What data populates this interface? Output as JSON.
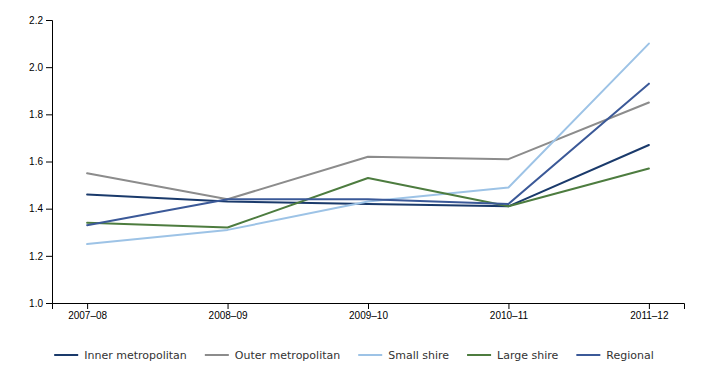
{
  "chart_data": {
    "type": "line",
    "categories": [
      "2007–08",
      "2008–09",
      "2009–10",
      "2010–11",
      "2011–12"
    ],
    "series": [
      {
        "name": "Inner metropolitan",
        "color": "#1a3a6b",
        "values": [
          1.46,
          1.43,
          1.42,
          1.41,
          1.67
        ]
      },
      {
        "name": "Outer metropolitan",
        "color": "#8c8c8c",
        "values": [
          1.55,
          1.44,
          1.62,
          1.61,
          1.85
        ]
      },
      {
        "name": "Small shire",
        "color": "#9dc3e6",
        "values": [
          1.25,
          1.31,
          1.43,
          1.49,
          2.1
        ]
      },
      {
        "name": "Large shire",
        "color": "#4d7c3f",
        "values": [
          1.34,
          1.32,
          1.53,
          1.41,
          1.57
        ]
      },
      {
        "name": "Regional",
        "color": "#3b5998",
        "values": [
          1.33,
          1.44,
          1.44,
          1.42,
          1.93
        ]
      }
    ],
    "ylim": [
      1.0,
      2.2
    ],
    "yticks": [
      {
        "value": 1.0,
        "label": "1.0"
      },
      1.2,
      1.4,
      1.6,
      1.8,
      {
        "value": 2.0,
        "label": "2.0"
      },
      2.2
    ],
    "grid": false,
    "legend": "bottom"
  }
}
